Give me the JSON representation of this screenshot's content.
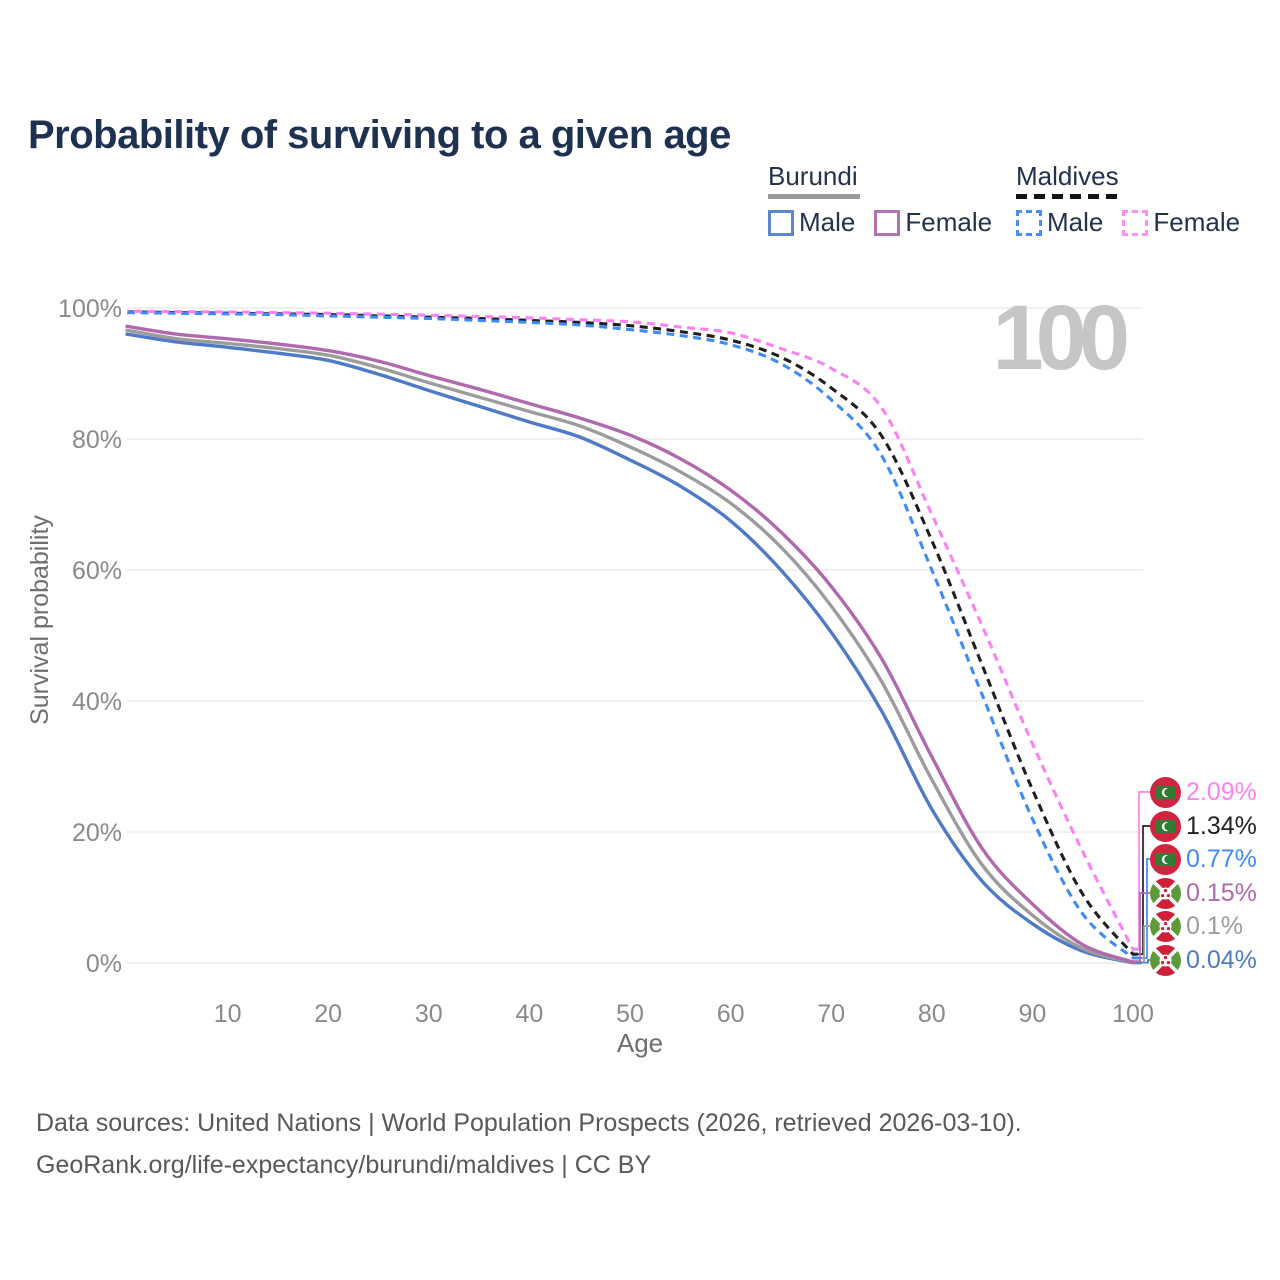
{
  "header": {
    "title": "Probability of surviving to a given age"
  },
  "watermark": "100",
  "legend": {
    "groups": [
      {
        "name": "Burundi",
        "line_style": "solid",
        "underline_color": "#9a9a9a",
        "items": [
          {
            "label": "Male",
            "color": "#5c86c9",
            "dashed": false
          },
          {
            "label": "Female",
            "color": "#b173af",
            "dashed": false
          }
        ]
      },
      {
        "name": "Maldives",
        "line_style": "dashed",
        "underline_color": "#141414",
        "items": [
          {
            "label": "Male",
            "color": "#4b8cf5",
            "dashed": true
          },
          {
            "label": "Female",
            "color": "#fb90f0",
            "dashed": true
          }
        ]
      }
    ]
  },
  "chart_data": {
    "type": "line",
    "title": "Probability of surviving to a given age",
    "xlabel": "Age",
    "ylabel": "Survival probability",
    "xlim": [
      0,
      100
    ],
    "ylim": [
      0,
      100
    ],
    "grid": "horizontal-only",
    "legend_position": "top-right",
    "xticks": {
      "values": [
        10,
        20,
        30,
        40,
        50,
        60,
        70,
        80,
        90,
        100
      ],
      "labels": [
        "10",
        "20",
        "30",
        "40",
        "50",
        "60",
        "70",
        "80",
        "90",
        "100"
      ]
    },
    "yticks": {
      "values": [
        0,
        20,
        40,
        60,
        80,
        100
      ],
      "labels": [
        "0%",
        "20%",
        "40%",
        "60%",
        "80%",
        "100%"
      ]
    },
    "x": [
      0,
      5,
      10,
      15,
      20,
      25,
      30,
      35,
      40,
      45,
      50,
      55,
      60,
      65,
      70,
      75,
      80,
      85,
      90,
      95,
      100
    ],
    "series": [
      {
        "id": "burundi-male",
        "country": "Burundi",
        "sex": "Male",
        "color": "#4e7ac6",
        "dashed": false,
        "end_value_label": "0.04%",
        "values": [
          96.0,
          94.8,
          94.0,
          93.1,
          92.0,
          89.9,
          87.4,
          85.0,
          82.6,
          80.3,
          76.8,
          72.8,
          67.5,
          60.0,
          50.5,
          38.5,
          23.5,
          12.5,
          6.0,
          1.8,
          0.04
        ]
      },
      {
        "id": "burundi-both",
        "country": "Burundi",
        "sex": "Both sexes",
        "color": "#9c9c9c",
        "dashed": false,
        "end_value_label": "0.1%",
        "values": [
          96.6,
          95.3,
          94.6,
          93.8,
          92.8,
          90.9,
          88.6,
          86.4,
          84.2,
          82.0,
          78.8,
          75.0,
          70.2,
          63.5,
          54.5,
          43.0,
          28.0,
          15.0,
          7.3,
          2.2,
          0.1
        ]
      },
      {
        "id": "burundi-female",
        "country": "Burundi",
        "sex": "Female",
        "color": "#b069ae",
        "dashed": false,
        "end_value_label": "0.15%",
        "values": [
          97.2,
          96.0,
          95.3,
          94.5,
          93.5,
          91.9,
          89.7,
          87.6,
          85.4,
          83.2,
          80.6,
          77.0,
          72.2,
          65.8,
          57.5,
          46.5,
          31.5,
          17.5,
          9.0,
          2.8,
          0.15
        ]
      },
      {
        "id": "maldives-both",
        "country": "Maldives",
        "sex": "Both sexes",
        "color": "#1f1f1f",
        "dashed": true,
        "end_value_label": "1.34%",
        "values": [
          99.4,
          99.3,
          99.2,
          99.1,
          99.0,
          98.8,
          98.6,
          98.4,
          98.1,
          97.8,
          97.3,
          96.4,
          95.1,
          92.5,
          87.8,
          80.5,
          64.5,
          45.5,
          26.5,
          10.5,
          1.34
        ]
      },
      {
        "id": "maldives-male",
        "country": "Maldives",
        "sex": "Male",
        "color": "#3f8bf7",
        "dashed": true,
        "end_value_label": "0.77%",
        "values": [
          99.3,
          99.2,
          99.1,
          99.0,
          98.8,
          98.6,
          98.4,
          98.1,
          97.8,
          97.4,
          96.7,
          95.8,
          94.4,
          91.5,
          86.0,
          77.5,
          60.0,
          41.0,
          22.0,
          7.5,
          0.77
        ]
      },
      {
        "id": "maldives-female",
        "country": "Maldives",
        "sex": "Female",
        "color": "#fb82f1",
        "dashed": true,
        "end_value_label": "2.09%",
        "values": [
          99.5,
          99.45,
          99.4,
          99.3,
          99.2,
          99.05,
          98.9,
          98.7,
          98.5,
          98.2,
          97.9,
          97.1,
          96.2,
          93.8,
          90.8,
          84.8,
          68.5,
          51.5,
          33.5,
          17.0,
          2.09
        ]
      }
    ]
  },
  "end_labels": [
    {
      "text": "2.09%",
      "value": 2.09,
      "color": "#fb82f1",
      "flag": "maldives",
      "series": "maldives-female"
    },
    {
      "text": "1.34%",
      "value": 1.34,
      "color": "#222222",
      "flag": "maldives",
      "series": "maldives-both"
    },
    {
      "text": "0.77%",
      "value": 0.77,
      "color": "#3f8bf7",
      "flag": "maldives",
      "series": "maldives-male"
    },
    {
      "text": "0.15%",
      "value": 0.15,
      "color": "#b069ae",
      "flag": "burundi",
      "series": "burundi-female"
    },
    {
      "text": "0.1%",
      "value": 0.1,
      "color": "#9c9c9c",
      "flag": "burundi",
      "series": "burundi-both"
    },
    {
      "text": "0.04%",
      "value": 0.04,
      "color": "#4e7ac6",
      "flag": "burundi",
      "series": "burundi-male"
    }
  ],
  "axes_colors": {
    "grid": "#e7e7e7",
    "tick_label": "#8a8a8a",
    "axis_title": "#6f6f6f"
  },
  "flag_colors": {
    "maldives_red": "#d02540",
    "maldives_green": "#2e7d32",
    "burundi_red": "#ce2038",
    "burundi_green": "#5f9a3a"
  },
  "footer": {
    "line1": "Data sources: United Nations | World Population Prospects (2026, retrieved 2026-03-10).",
    "line2": "GeoRank.org/life-expectancy/burundi/maldives | CC BY"
  }
}
